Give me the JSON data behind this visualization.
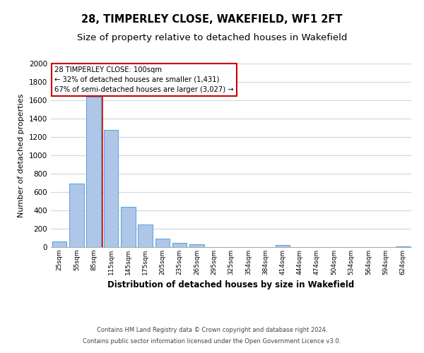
{
  "title": "28, TIMPERLEY CLOSE, WAKEFIELD, WF1 2FT",
  "subtitle": "Size of property relative to detached houses in Wakefield",
  "xlabel": "Distribution of detached houses by size in Wakefield",
  "ylabel": "Number of detached properties",
  "bar_labels": [
    "25sqm",
    "55sqm",
    "85sqm",
    "115sqm",
    "145sqm",
    "175sqm",
    "205sqm",
    "235sqm",
    "265sqm",
    "295sqm",
    "325sqm",
    "354sqm",
    "384sqm",
    "414sqm",
    "444sqm",
    "474sqm",
    "504sqm",
    "534sqm",
    "564sqm",
    "594sqm",
    "624sqm"
  ],
  "bar_values": [
    65,
    690,
    1640,
    1280,
    440,
    250,
    90,
    50,
    30,
    0,
    0,
    0,
    0,
    20,
    0,
    0,
    0,
    0,
    0,
    0,
    10
  ],
  "bar_color": "#aec6e8",
  "bar_edge_color": "#5a9fd4",
  "ylim": [
    0,
    2000
  ],
  "yticks": [
    0,
    200,
    400,
    600,
    800,
    1000,
    1200,
    1400,
    1600,
    1800,
    2000
  ],
  "annotation_title": "28 TIMPERLEY CLOSE: 100sqm",
  "annotation_line1": "← 32% of detached houses are smaller (1,431)",
  "annotation_line2": "67% of semi-detached houses are larger (3,027) →",
  "annotation_box_color": "#ffffff",
  "annotation_border_color": "#cc0000",
  "red_line_color": "#cc0000",
  "footer_line1": "Contains HM Land Registry data © Crown copyright and database right 2024.",
  "footer_line2": "Contains public sector information licensed under the Open Government Licence v3.0.",
  "bg_color": "#ffffff",
  "grid_color": "#c8d8e8",
  "title_fontsize": 10.5,
  "subtitle_fontsize": 9.5
}
